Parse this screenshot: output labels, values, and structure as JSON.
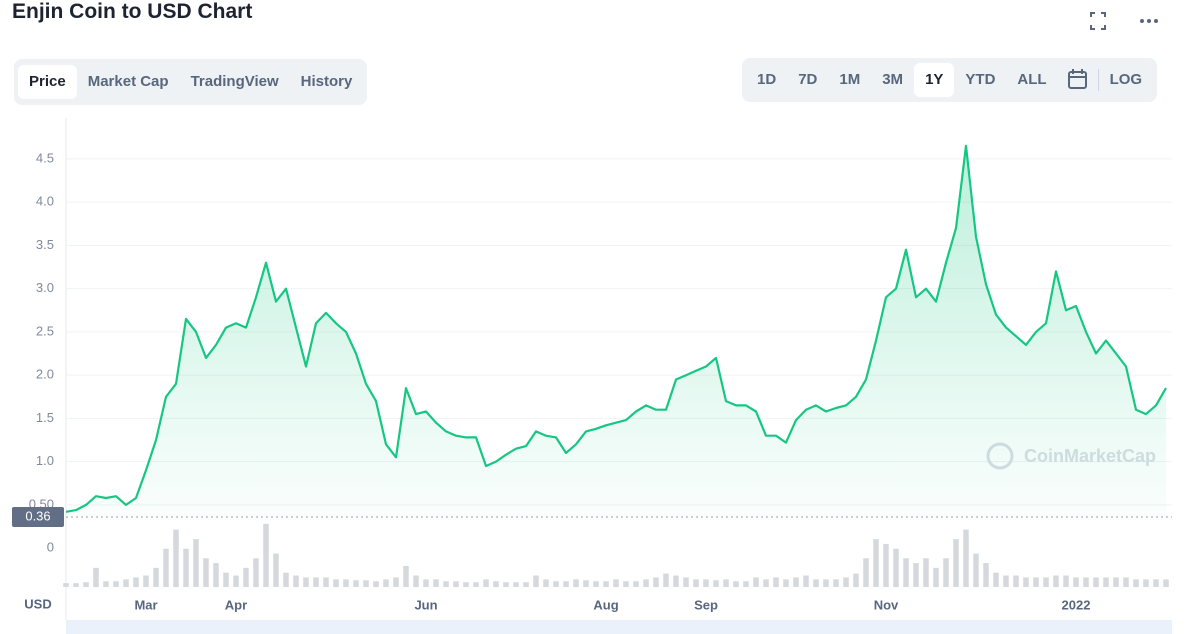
{
  "title": "Enjin Coin to USD Chart",
  "tabs": [
    "Price",
    "Market Cap",
    "TradingView",
    "History"
  ],
  "ranges": [
    "1D",
    "7D",
    "1M",
    "3M",
    "1Y",
    "YTD",
    "ALL"
  ],
  "log_button": "LOG",
  "chart_data": {
    "type": "line",
    "color": "#16c784",
    "currency_label": "USD",
    "watermark": "CoinMarketCap",
    "volume_axis_label": "0",
    "marker_value": 0.36,
    "ylim": [
      0.36,
      4.95
    ],
    "yticks": [
      {
        "value": 0.5,
        "label": "0.50"
      },
      {
        "value": 1,
        "label": "1.0"
      },
      1.5,
      {
        "value": 2,
        "label": "2.0"
      },
      2.5,
      {
        "value": 3,
        "label": "3.0"
      },
      3.5,
      {
        "value": 4,
        "label": "4.0"
      },
      4.5
    ],
    "grid": true,
    "categories": [
      null,
      null,
      null,
      null,
      null,
      null,
      null,
      null,
      "Mar",
      null,
      null,
      null,
      null,
      null,
      null,
      null,
      null,
      "Apr",
      null,
      null,
      null,
      null,
      null,
      null,
      null,
      null,
      null,
      null,
      null,
      null,
      null,
      null,
      null,
      null,
      null,
      null,
      "Jun",
      null,
      null,
      null,
      null,
      null,
      null,
      null,
      null,
      null,
      null,
      null,
      null,
      null,
      null,
      null,
      null,
      null,
      "Aug",
      null,
      null,
      null,
      null,
      null,
      null,
      null,
      null,
      null,
      "Sep",
      null,
      null,
      null,
      null,
      null,
      null,
      null,
      null,
      null,
      null,
      null,
      null,
      null,
      null,
      null,
      null,
      null,
      "Nov",
      null,
      null,
      null,
      null,
      null,
      null,
      null,
      null,
      null,
      null,
      null,
      null,
      null,
      null,
      null,
      null,
      null,
      null,
      "2022",
      null,
      null,
      null,
      null,
      null,
      null,
      null,
      null,
      null
    ],
    "values": [
      0.42,
      0.44,
      0.5,
      0.6,
      0.58,
      0.6,
      0.5,
      0.58,
      0.9,
      1.25,
      1.75,
      1.9,
      2.65,
      2.5,
      2.2,
      2.35,
      2.55,
      2.6,
      2.55,
      2.9,
      3.3,
      2.85,
      3.0,
      2.55,
      2.1,
      2.6,
      2.72,
      2.6,
      2.5,
      2.25,
      1.9,
      1.7,
      1.2,
      1.05,
      1.85,
      1.55,
      1.58,
      1.45,
      1.35,
      1.3,
      1.28,
      1.28,
      0.95,
      1.0,
      1.08,
      1.15,
      1.18,
      1.35,
      1.3,
      1.28,
      1.1,
      1.2,
      1.35,
      1.38,
      1.42,
      1.45,
      1.48,
      1.58,
      1.65,
      1.6,
      1.6,
      1.95,
      2.0,
      2.05,
      2.1,
      2.2,
      1.7,
      1.65,
      1.65,
      1.58,
      1.3,
      1.3,
      1.22,
      1.48,
      1.6,
      1.65,
      1.58,
      1.62,
      1.65,
      1.75,
      1.95,
      2.4,
      2.9,
      3.0,
      3.45,
      2.9,
      3.0,
      2.85,
      3.3,
      3.7,
      4.65,
      3.6,
      3.05,
      2.7,
      2.55,
      2.45,
      2.35,
      2.5,
      2.6,
      3.2,
      2.75,
      2.8,
      2.5,
      2.25,
      2.4,
      2.25,
      2.1,
      1.6,
      1.55,
      1.65,
      1.85
    ],
    "volume_color": "#d5d8dc",
    "volume_ylim": [
      0,
      70
    ],
    "volume": [
      4,
      4,
      5,
      20,
      6,
      6,
      8,
      10,
      12,
      20,
      40,
      60,
      40,
      50,
      30,
      25,
      15,
      12,
      20,
      30,
      66,
      35,
      15,
      12,
      10,
      10,
      10,
      8,
      8,
      7,
      7,
      6,
      8,
      10,
      22,
      12,
      8,
      8,
      6,
      6,
      5,
      5,
      8,
      6,
      5,
      5,
      5,
      12,
      8,
      6,
      6,
      8,
      7,
      6,
      6,
      8,
      6,
      6,
      8,
      10,
      14,
      12,
      10,
      8,
      8,
      7,
      8,
      6,
      6,
      10,
      8,
      10,
      8,
      10,
      12,
      8,
      8,
      8,
      10,
      14,
      30,
      50,
      45,
      40,
      30,
      25,
      30,
      20,
      30,
      50,
      60,
      35,
      25,
      15,
      12,
      12,
      10,
      10,
      10,
      12,
      12,
      10,
      10,
      10,
      10,
      10,
      10,
      8,
      8,
      8,
      8
    ]
  }
}
